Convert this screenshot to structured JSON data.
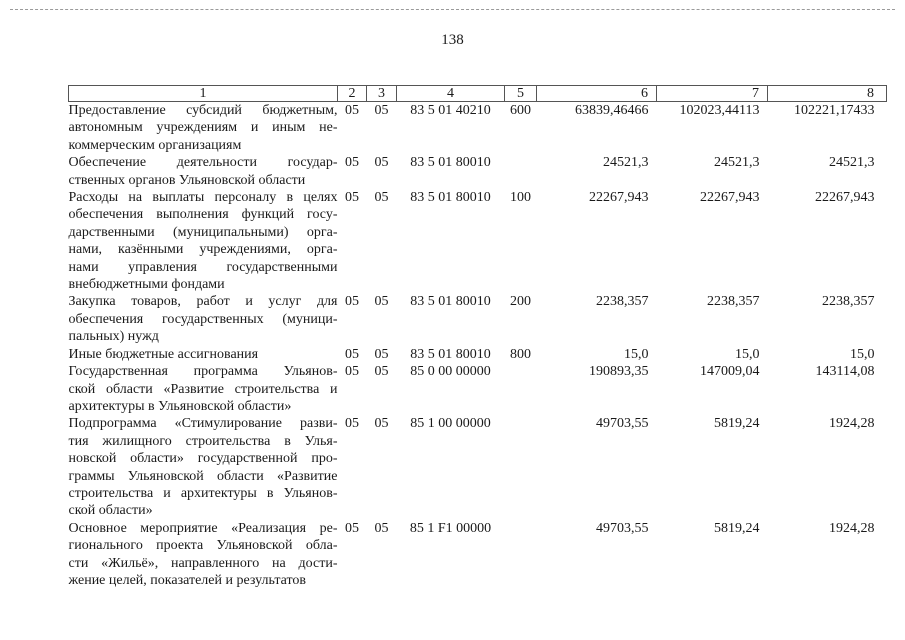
{
  "page_number": "138",
  "table": {
    "headers": [
      "1",
      "2",
      "3",
      "4",
      "5",
      "6",
      "7",
      "8"
    ],
    "rows": [
      {
        "name_lines": [
          "Предоставление субсидий бюджетным,",
          "автономным учреждениям и иным не-",
          "коммерческим организациям"
        ],
        "c2": "05",
        "c3": "05",
        "c4": "83 5 01 40210",
        "c5": "600",
        "c6": "63839,46466",
        "c7": "102023,44113",
        "c8": "102221,17433"
      },
      {
        "name_lines": [
          "Обеспечение деятельности государ-",
          "ственных органов Ульяновской области"
        ],
        "c2": "05",
        "c3": "05",
        "c4": "83 5 01 80010",
        "c5": "",
        "c6": "24521,3",
        "c7": "24521,3",
        "c8": "24521,3"
      },
      {
        "name_lines": [
          "Расходы на выплаты персоналу в целях",
          "обеспечения выполнения функций госу-",
          "дарственными (муниципальными) орга-",
          "нами, казёнными учреждениями, орга-",
          "нами управления государственными",
          "внебюджетными фондами"
        ],
        "c2": "05",
        "c3": "05",
        "c4": "83 5 01 80010",
        "c5": "100",
        "c6": "22267,943",
        "c7": "22267,943",
        "c8": "22267,943"
      },
      {
        "name_lines": [
          "Закупка товаров, работ и услуг для",
          "обеспечения государственных (муници-",
          "пальных) нужд"
        ],
        "c2": "05",
        "c3": "05",
        "c4": "83 5 01 80010",
        "c5": "200",
        "c6": "2238,357",
        "c7": "2238,357",
        "c8": "2238,357"
      },
      {
        "name_lines": [
          "Иные бюджетные ассигнования"
        ],
        "c2": "05",
        "c3": "05",
        "c4": "83 5 01 80010",
        "c5": "800",
        "c6": "15,0",
        "c7": "15,0",
        "c8": "15,0"
      },
      {
        "name_lines": [
          "Государственная программа Ульянов-",
          "ской области «Развитие строительства и",
          "архитектуры в Ульяновской области»"
        ],
        "c2": "05",
        "c3": "05",
        "c4": "85 0 00 00000",
        "c5": "",
        "c6": "190893,35",
        "c7": "147009,04",
        "c8": "143114,08"
      },
      {
        "name_lines": [
          "Подпрограмма «Стимулирование разви-",
          "тия жилищного строительства в Улья-",
          "новской области» государственной про-",
          "граммы Ульяновской области «Развитие",
          "строительства и архитектуры в Ульянов-",
          "ской области»"
        ],
        "c2": "05",
        "c3": "05",
        "c4": "85 1 00 00000",
        "c5": "",
        "c6": "49703,55",
        "c7": "5819,24",
        "c8": "1924,28"
      },
      {
        "name_lines": [
          "Основное мероприятие «Реализация ре-",
          "гионального проекта Ульяновской обла-",
          "сти «Жильё», направленного на дости-",
          "жение целей, показателей и результатов"
        ],
        "c2": "05",
        "c3": "05",
        "c4": "85 1 F1 00000",
        "c5": "",
        "c6": "49703,55",
        "c7": "5819,24",
        "c8": "1924,28"
      }
    ]
  }
}
